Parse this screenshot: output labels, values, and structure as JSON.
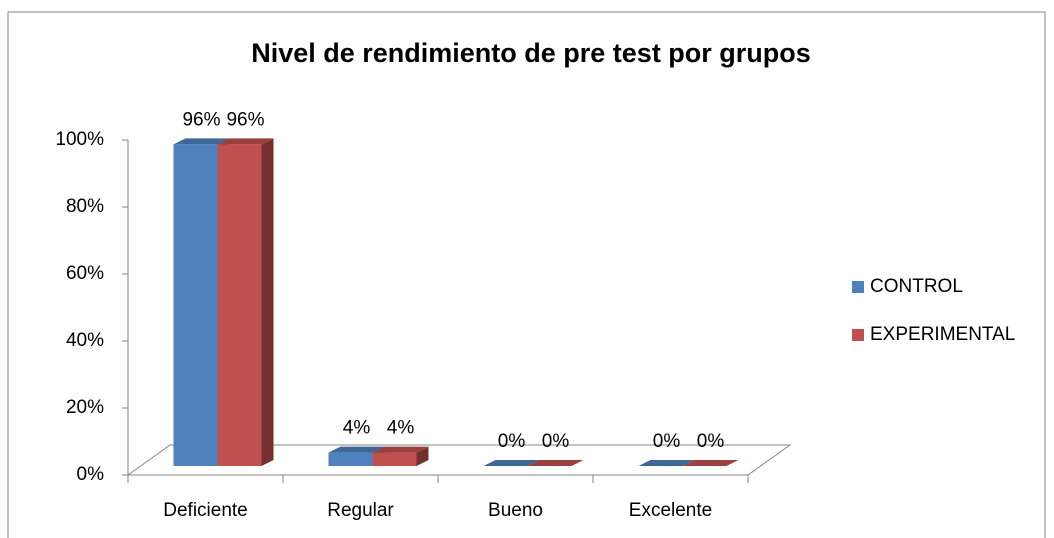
{
  "chart_data": {
    "type": "bar3d",
    "title": "Nivel de rendimiento de pre test por grupos",
    "categories": [
      "Deficiente",
      "Regular",
      "Bueno",
      "Excelente"
    ],
    "series": [
      {
        "name": "CONTROL",
        "color": "#4f81bd",
        "values": [
          96,
          4,
          0,
          0
        ],
        "value_labels": [
          "96%",
          "4%",
          "0%",
          "0%"
        ]
      },
      {
        "name": "EXPERIMENTAL",
        "color": "#c0504d",
        "values": [
          96,
          4,
          0,
          0
        ],
        "value_labels": [
          "96%",
          "4%",
          "0%",
          "0%"
        ]
      }
    ],
    "ylim": [
      0,
      100
    ],
    "yticks": [
      {
        "value": 0,
        "label": "0%"
      },
      {
        "value": 20,
        "label": "20%"
      },
      {
        "value": 40,
        "label": "40%"
      },
      {
        "value": 60,
        "label": "60%"
      },
      {
        "value": 80,
        "label": "80%"
      },
      {
        "value": 100,
        "label": "100%"
      }
    ],
    "legend": "right"
  }
}
